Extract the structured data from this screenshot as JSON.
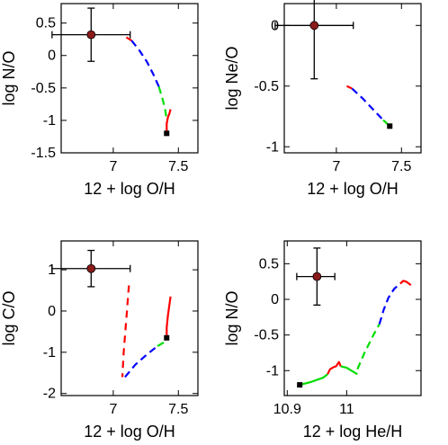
{
  "chart_data": [
    {
      "type": "line",
      "xlabel": "12 + log O/H",
      "ylabel": "log N/O",
      "xlim": [
        6.6,
        7.65
      ],
      "ylim": [
        -1.5,
        0.8
      ],
      "xticks": [
        {
          "v": 7,
          "label": "7"
        },
        {
          "v": 7.5,
          "label": "7.5"
        }
      ],
      "yticks": [
        {
          "v": 0.5,
          "label": "0.5"
        },
        {
          "v": 0,
          "label": "0"
        },
        {
          "v": -0.5,
          "label": "-0.5"
        },
        {
          "v": -1,
          "label": "-1"
        },
        {
          "v": -1.5,
          "label": "-1.5"
        }
      ],
      "point": {
        "x": 6.83,
        "y": 0.32,
        "xerr": [
          0.3,
          0.3
        ],
        "yerr": [
          0.41,
          0.41
        ],
        "color": "#8b1a1a"
      },
      "marker": {
        "x": 7.41,
        "y": -1.2
      },
      "series": [
        {
          "color": "#ff0000",
          "dash": "8,5",
          "x": [
            7.1,
            7.14
          ],
          "y": [
            0.28,
            0.23
          ]
        },
        {
          "color": "#0000ff",
          "dash": "8,5",
          "x": [
            7.14,
            7.2,
            7.26,
            7.31,
            7.35
          ],
          "y": [
            0.23,
            0.08,
            -0.1,
            -0.3,
            -0.48
          ]
        },
        {
          "color": "#00dd00",
          "dash": "8,5",
          "x": [
            7.35,
            7.38,
            7.4,
            7.41
          ],
          "y": [
            -0.48,
            -0.68,
            -0.85,
            -1.0
          ]
        },
        {
          "color": "#ff0000",
          "dash": "",
          "x": [
            7.41,
            7.41,
            7.42,
            7.43,
            7.44
          ],
          "y": [
            -1.18,
            -1.05,
            -0.95,
            -0.9,
            -0.83
          ]
        }
      ]
    },
    {
      "type": "line",
      "xlabel": "12 + log O/H",
      "ylabel": "log Ne/O",
      "xlim": [
        6.6,
        7.65
      ],
      "ylim": [
        -1.05,
        0.18
      ],
      "xticks": [
        {
          "v": 7,
          "label": "7"
        },
        {
          "v": 7.5,
          "label": "7.5"
        }
      ],
      "yticks": [
        {
          "v": 0,
          "label": "0"
        },
        {
          "v": -0.5,
          "label": "-0.5"
        },
        {
          "v": -1,
          "label": "-1"
        }
      ],
      "point": {
        "x": 6.83,
        "y": 0.0,
        "xerr": [
          0.3,
          0.3
        ],
        "yerr": [
          0.44,
          0.44
        ],
        "color": "#8b1a1a"
      },
      "marker": {
        "x": 7.41,
        "y": -0.83
      },
      "series": [
        {
          "color": "#ff0000",
          "dash": "8,5",
          "x": [
            7.08,
            7.12
          ],
          "y": [
            -0.5,
            -0.52
          ]
        },
        {
          "color": "#0000ff",
          "dash": "8,5",
          "x": [
            7.12,
            7.2,
            7.28,
            7.36
          ],
          "y": [
            -0.52,
            -0.6,
            -0.69,
            -0.78
          ]
        },
        {
          "color": "#00dd00",
          "dash": "8,5",
          "x": [
            7.36,
            7.41
          ],
          "y": [
            -0.78,
            -0.83
          ]
        }
      ]
    },
    {
      "type": "line",
      "xlabel": "12 + log O/H",
      "ylabel": "log C/O",
      "xlim": [
        6.6,
        7.65
      ],
      "ylim": [
        -2.05,
        1.7
      ],
      "xticks": [
        {
          "v": 7,
          "label": "7"
        },
        {
          "v": 7.5,
          "label": "7.5"
        }
      ],
      "yticks": [
        {
          "v": 1,
          "label": "1"
        },
        {
          "v": 0,
          "label": "0"
        },
        {
          "v": -1,
          "label": "-1"
        },
        {
          "v": -2,
          "label": "-2"
        }
      ],
      "point": {
        "x": 6.83,
        "y": 1.03,
        "xerr": [
          0.3,
          0.3
        ],
        "yerr": [
          0.44,
          0.44
        ],
        "color": "#8b1a1a"
      },
      "marker": {
        "x": 7.41,
        "y": -0.65
      },
      "series": [
        {
          "color": "#ff0000",
          "dash": "8,6",
          "x": [
            7.12,
            7.1,
            7.08,
            7.07
          ],
          "y": [
            0.62,
            -0.2,
            -1.0,
            -1.6
          ]
        },
        {
          "color": "#0000ff",
          "dash": "8,5",
          "x": [
            7.09,
            7.17,
            7.26,
            7.34
          ],
          "y": [
            -1.6,
            -1.3,
            -1.05,
            -0.85
          ]
        },
        {
          "color": "#00dd00",
          "dash": "8,5",
          "x": [
            7.34,
            7.41
          ],
          "y": [
            -0.85,
            -0.72
          ]
        },
        {
          "color": "#ff0000",
          "dash": "",
          "x": [
            7.41,
            7.41,
            7.42,
            7.44
          ],
          "y": [
            -0.65,
            -0.4,
            -0.1,
            0.35
          ]
        }
      ]
    },
    {
      "type": "line",
      "xlabel": "12 + log He/H",
      "ylabel": "log N/O",
      "xlim": [
        10.895,
        11.125
      ],
      "ylim": [
        -1.35,
        0.82
      ],
      "xticks": [
        {
          "v": 10.9,
          "label": "10.9"
        },
        {
          "v": 11.0,
          "label": "11"
        }
      ],
      "yticks": [
        {
          "v": 0.5,
          "label": "0.5"
        },
        {
          "v": 0,
          "label": "0"
        },
        {
          "v": -0.5,
          "label": "-0.5"
        },
        {
          "v": -1,
          "label": "-1"
        }
      ],
      "point": {
        "x": 10.95,
        "y": 0.32,
        "xerr": [
          0.034,
          0.03
        ],
        "yerr": [
          0.4,
          0.4
        ],
        "color": "#8b1a1a"
      },
      "marker": {
        "x": 10.921,
        "y": -1.2
      },
      "series": [
        {
          "color": "#00dd00",
          "dash": "",
          "x": [
            10.921,
            10.94,
            10.96,
            10.968
          ],
          "y": [
            -1.2,
            -1.16,
            -1.1,
            -1.05
          ]
        },
        {
          "color": "#ff0000",
          "dash": "",
          "x": [
            10.968,
            10.972,
            10.978,
            10.982,
            10.987,
            10.99
          ],
          "y": [
            -1.05,
            -0.98,
            -0.95,
            -0.94,
            -0.88,
            -0.94
          ]
        },
        {
          "color": "#00dd00",
          "dash": "",
          "x": [
            10.99,
            11.0,
            11.008,
            11.018
          ],
          "y": [
            -0.94,
            -0.96,
            -1.0,
            -1.05
          ]
        },
        {
          "color": "#00dd00",
          "dash": "8,5",
          "x": [
            11.018,
            11.03,
            11.045,
            11.055
          ],
          "y": [
            -0.98,
            -0.75,
            -0.5,
            -0.35
          ]
        },
        {
          "color": "#0000ff",
          "dash": "8,5",
          "x": [
            11.055,
            11.062,
            11.07,
            11.08,
            11.09
          ],
          "y": [
            -0.35,
            -0.15,
            0.02,
            0.15,
            0.22
          ]
        },
        {
          "color": "#ff0000",
          "dash": "",
          "x": [
            11.09,
            11.095,
            11.1,
            11.108
          ],
          "y": [
            0.22,
            0.26,
            0.25,
            0.2
          ]
        }
      ]
    }
  ]
}
